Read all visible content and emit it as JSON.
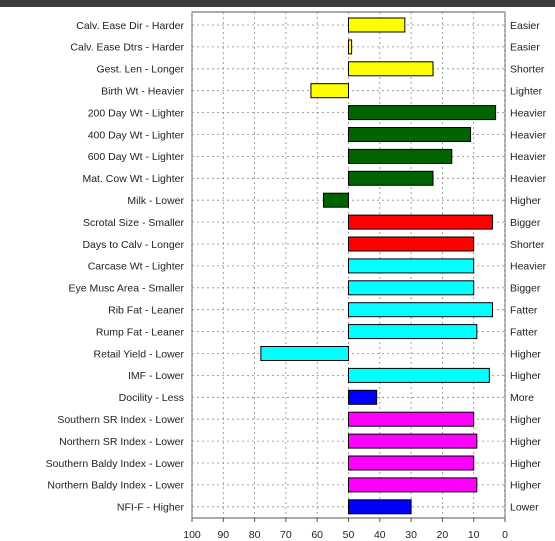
{
  "chart_data": {
    "type": "bar",
    "orientation": "horizontal",
    "x_axis": {
      "direction": "reversed",
      "xlim": [
        100,
        0
      ],
      "ticks": [
        "100",
        "90",
        "80",
        "70",
        "60",
        "50",
        "40",
        "30",
        "20",
        "10",
        "0"
      ]
    },
    "grid": true,
    "baseline": 50,
    "rows": [
      {
        "left_label": "Calv. Ease Dir - Harder",
        "right_label": "Easier",
        "value": 32,
        "color": "#ffff00"
      },
      {
        "left_label": "Calv. Ease Dtrs - Harder",
        "right_label": "Easier",
        "value": 49,
        "color": "#ffff00"
      },
      {
        "left_label": "Gest. Len - Longer",
        "right_label": "Shorter",
        "value": 23,
        "color": "#ffff00"
      },
      {
        "left_label": "Birth Wt - Heavier",
        "right_label": "Lighter",
        "value": 62,
        "color": "#ffff00"
      },
      {
        "left_label": "200 Day Wt - Lighter",
        "right_label": "Heavier",
        "value": 3,
        "color": "#006400"
      },
      {
        "left_label": "400 Day Wt - Lighter",
        "right_label": "Heavier",
        "value": 11,
        "color": "#006400"
      },
      {
        "left_label": "600 Day Wt - Lighter",
        "right_label": "Heavier",
        "value": 17,
        "color": "#006400"
      },
      {
        "left_label": "Mat. Cow Wt - Lighter",
        "right_label": "Heavier",
        "value": 23,
        "color": "#006400"
      },
      {
        "left_label": "Milk - Lower",
        "right_label": "Higher",
        "value": 58,
        "color": "#006400"
      },
      {
        "left_label": "Scrotal Size - Smaller",
        "right_label": "Bigger",
        "value": 4,
        "color": "#ff0000"
      },
      {
        "left_label": "Days to Calv - Longer",
        "right_label": "Shorter",
        "value": 10,
        "color": "#ff0000"
      },
      {
        "left_label": "Carcase Wt - Lighter",
        "right_label": "Heavier",
        "value": 10,
        "color": "#00ffff"
      },
      {
        "left_label": "Eye Musc Area - Smaller",
        "right_label": "Bigger",
        "value": 10,
        "color": "#00ffff"
      },
      {
        "left_label": "Rib Fat - Leaner",
        "right_label": "Fatter",
        "value": 4,
        "color": "#00ffff"
      },
      {
        "left_label": "Rump Fat - Leaner",
        "right_label": "Fatter",
        "value": 9,
        "color": "#00ffff"
      },
      {
        "left_label": "Retail Yield - Lower",
        "right_label": "Higher",
        "value": 78,
        "color": "#00ffff"
      },
      {
        "left_label": "IMF - Lower",
        "right_label": "Higher",
        "value": 5,
        "color": "#00ffff"
      },
      {
        "left_label": "Docility - Less",
        "right_label": "More",
        "value": 41,
        "color": "#0000ff"
      },
      {
        "left_label": "Southern SR Index - Lower",
        "right_label": "Higher",
        "value": 10,
        "color": "#ff00ff"
      },
      {
        "left_label": "Northern SR Index - Lower",
        "right_label": "Higher",
        "value": 9,
        "color": "#ff00ff"
      },
      {
        "left_label": "Southern Baldy Index - Lower",
        "right_label": "Higher",
        "value": 10,
        "color": "#ff00ff"
      },
      {
        "left_label": "Northern Baldy Index - Lower",
        "right_label": "Higher",
        "value": 9,
        "color": "#ff00ff"
      },
      {
        "left_label": "NFI-F - Higher",
        "right_label": "Lower",
        "value": 30,
        "color": "#0000ff"
      }
    ]
  }
}
